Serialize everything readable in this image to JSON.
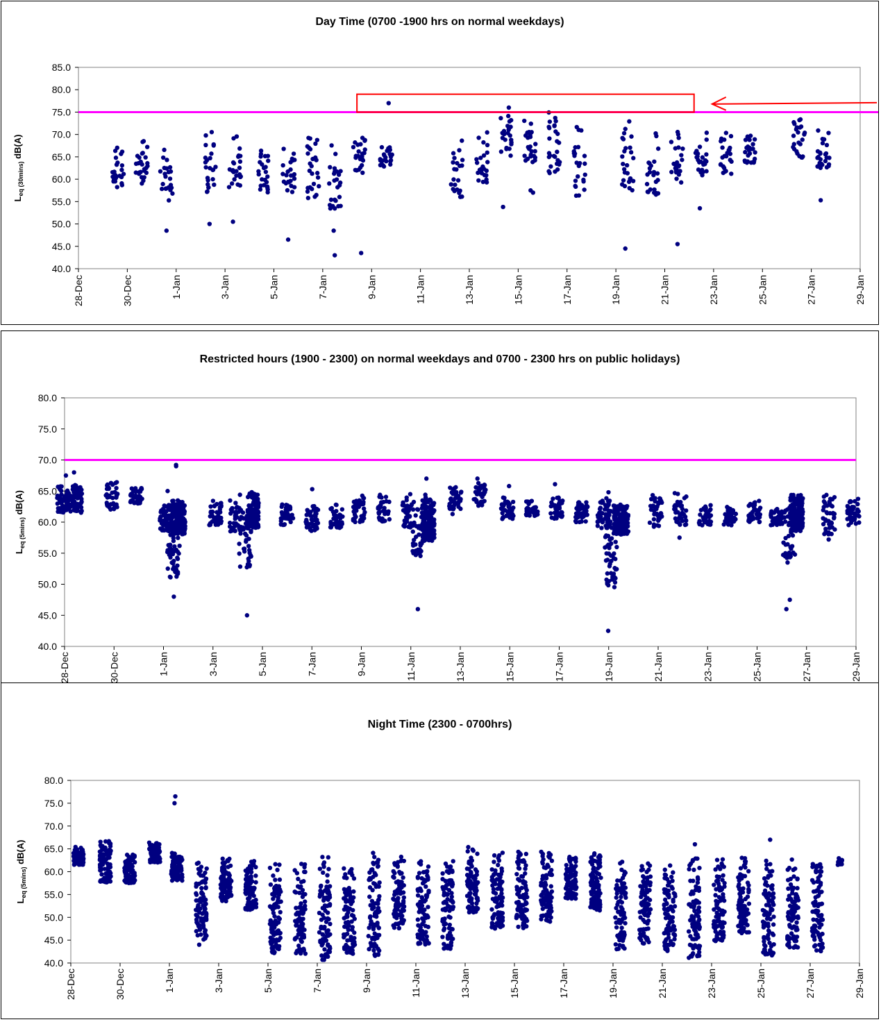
{
  "chart_data": [
    {
      "type": "scatter",
      "title": "Day Time (0700 -1900 hrs on normal weekdays)",
      "ylabel": {
        "main": "L",
        "sub": "eq (30mins)",
        "unit": " dB(A)"
      },
      "ylim": [
        40,
        85
      ],
      "yticks": [
        "40.0",
        "45.0",
        "50.0",
        "55.0",
        "60.0",
        "65.0",
        "70.0",
        "75.0",
        "80.0",
        "85.0"
      ],
      "xticks": [
        "28-Dec",
        "30-Dec",
        "1-Jan",
        "3-Jan",
        "5-Jan",
        "7-Jan",
        "9-Jan",
        "11-Jan",
        "13-Jan",
        "15-Jan",
        "17-Jan",
        "19-Jan",
        "21-Jan",
        "23-Jan",
        "25-Jan",
        "27-Jan",
        "29-Jan"
      ],
      "xlim_days": [
        0,
        32
      ],
      "limit_line": {
        "value": 75,
        "color": "#ff00ff"
      },
      "marker_color": "#000080",
      "annotation": {
        "type": "box-arrow",
        "color": "#ff0000",
        "x_start_day": 11.4,
        "x_end_day": 25.2,
        "y_low": 75,
        "y_high": 79
      },
      "clusters": [
        {
          "day": 1.6,
          "lo": 58,
          "hi": 69.5,
          "n": 26,
          "out": []
        },
        {
          "day": 2.6,
          "lo": 59,
          "hi": 69,
          "n": 26,
          "out": []
        },
        {
          "day": 3.6,
          "lo": 55,
          "hi": 67,
          "n": 22,
          "out": [
            48.5
          ]
        },
        {
          "day": 5.4,
          "lo": 57,
          "hi": 71,
          "n": 24,
          "out": [
            50
          ]
        },
        {
          "day": 6.4,
          "lo": 58,
          "hi": 70.5,
          "n": 24,
          "out": [
            50.5
          ]
        },
        {
          "day": 7.6,
          "lo": 57,
          "hi": 67.5,
          "n": 24,
          "out": []
        },
        {
          "day": 8.6,
          "lo": 57,
          "hi": 67,
          "n": 24,
          "out": [
            46.5
          ]
        },
        {
          "day": 9.6,
          "lo": 54,
          "hi": 70,
          "n": 26,
          "out": []
        },
        {
          "day": 10.5,
          "lo": 53,
          "hi": 70,
          "n": 24,
          "out": [
            48.5,
            43,
            54
          ]
        },
        {
          "day": 11.5,
          "lo": 61,
          "hi": 69.5,
          "n": 24,
          "out": [
            43.5
          ]
        },
        {
          "day": 12.6,
          "lo": 62.5,
          "hi": 68,
          "n": 24,
          "out": [
            77
          ]
        },
        {
          "day": 15.5,
          "lo": 56,
          "hi": 69.5,
          "n": 22,
          "out": []
        },
        {
          "day": 16.5,
          "lo": 59,
          "hi": 71,
          "n": 24,
          "out": []
        },
        {
          "day": 17.5,
          "lo": 65,
          "hi": 75.5,
          "n": 24,
          "out": [
            53.8,
            76
          ]
        },
        {
          "day": 18.5,
          "lo": 63,
          "hi": 73.5,
          "n": 24,
          "out": [
            57,
            57.5
          ]
        },
        {
          "day": 19.5,
          "lo": 60.5,
          "hi": 75,
          "n": 28,
          "out": []
        },
        {
          "day": 20.5,
          "lo": 55,
          "hi": 73,
          "n": 24,
          "out": []
        },
        {
          "day": 22.5,
          "lo": 57,
          "hi": 74,
          "n": 26,
          "out": [
            44.5
          ]
        },
        {
          "day": 23.5,
          "lo": 56.5,
          "hi": 72,
          "n": 24,
          "out": []
        },
        {
          "day": 24.5,
          "lo": 58.5,
          "hi": 71,
          "n": 24,
          "out": [
            45.5
          ]
        },
        {
          "day": 25.5,
          "lo": 60.5,
          "hi": 70.5,
          "n": 24,
          "out": [
            53.5
          ]
        },
        {
          "day": 26.5,
          "lo": 61,
          "hi": 70.5,
          "n": 24,
          "out": []
        },
        {
          "day": 27.5,
          "lo": 63.5,
          "hi": 71,
          "n": 24,
          "out": []
        },
        {
          "day": 29.5,
          "lo": 64.5,
          "hi": 74,
          "n": 24,
          "out": []
        },
        {
          "day": 30.5,
          "lo": 62,
          "hi": 72,
          "n": 26,
          "out": [
            55.3
          ]
        }
      ]
    },
    {
      "type": "scatter",
      "title": "Restricted hours (1900 - 2300) on normal weekdays and 0700 - 2300 hrs on public holidays)",
      "ylabel": {
        "main": "L",
        "sub": "eq (5mins)",
        "unit": " dB(A)"
      },
      "ylim": [
        40,
        80
      ],
      "yticks": [
        "40.0",
        "45.0",
        "50.0",
        "55.0",
        "60.0",
        "65.0",
        "70.0",
        "75.0",
        "80.0"
      ],
      "xticks": [
        "28-Dec",
        "30-Dec",
        "1-Jan",
        "3-Jan",
        "5-Jan",
        "7-Jan",
        "9-Jan",
        "11-Jan",
        "13-Jan",
        "15-Jan",
        "17-Jan",
        "19-Jan",
        "21-Jan",
        "23-Jan",
        "25-Jan",
        "27-Jan",
        "29-Jan"
      ],
      "xlim_days": [
        0,
        32
      ],
      "limit_line": {
        "value": 70,
        "color": "#ff00ff"
      },
      "marker_color": "#000080",
      "clusters": [
        {
          "day": 0.2,
          "lo": 61.5,
          "hi": 66,
          "n": 140,
          "w": 1.0,
          "out": [
            68,
            67.5
          ]
        },
        {
          "day": 1.9,
          "lo": 62,
          "hi": 66.5,
          "n": 40,
          "out": []
        },
        {
          "day": 2.9,
          "lo": 63,
          "hi": 65.5,
          "n": 40,
          "out": []
        },
        {
          "day": 4.1,
          "lo": 58.5,
          "hi": 63,
          "n": 60,
          "out": [
            65
          ]
        },
        {
          "day": 4.4,
          "lo": 51,
          "hi": 63,
          "n": 60,
          "out": [
            48,
            69
          ]
        },
        {
          "day": 4.6,
          "lo": 58,
          "hi": 63.5,
          "n": 180,
          "w": 0.55,
          "out": [
            69.2
          ]
        },
        {
          "day": 6.1,
          "lo": 59.5,
          "hi": 63.5,
          "n": 40,
          "out": []
        },
        {
          "day": 6.9,
          "lo": 58.5,
          "hi": 64.5,
          "n": 40,
          "out": []
        },
        {
          "day": 7.3,
          "lo": 52,
          "hi": 63,
          "n": 40,
          "out": [
            45
          ]
        },
        {
          "day": 7.6,
          "lo": 59,
          "hi": 65,
          "n": 140,
          "w": 0.5,
          "out": []
        },
        {
          "day": 9.0,
          "lo": 59.5,
          "hi": 63,
          "n": 40,
          "out": []
        },
        {
          "day": 10.0,
          "lo": 58.5,
          "hi": 63.5,
          "n": 40,
          "out": [
            65.3
          ]
        },
        {
          "day": 11.0,
          "lo": 59,
          "hi": 63,
          "n": 40,
          "out": []
        },
        {
          "day": 11.9,
          "lo": 60,
          "hi": 64.5,
          "n": 40,
          "out": []
        },
        {
          "day": 12.9,
          "lo": 60,
          "hi": 64.5,
          "n": 40,
          "out": []
        },
        {
          "day": 13.9,
          "lo": 59,
          "hi": 65,
          "n": 40,
          "out": []
        },
        {
          "day": 14.3,
          "lo": 54.5,
          "hi": 63,
          "n": 40,
          "out": [
            46
          ]
        },
        {
          "day": 14.7,
          "lo": 57,
          "hi": 64.5,
          "n": 150,
          "w": 0.5,
          "out": [
            67
          ]
        },
        {
          "day": 15.8,
          "lo": 62,
          "hi": 66,
          "n": 40,
          "out": [
            61.3
          ]
        },
        {
          "day": 16.8,
          "lo": 62.5,
          "hi": 66.5,
          "n": 40,
          "out": [
            67
          ]
        },
        {
          "day": 17.9,
          "lo": 60.5,
          "hi": 64,
          "n": 40,
          "out": [
            65.8
          ]
        },
        {
          "day": 18.9,
          "lo": 61,
          "hi": 63.5,
          "n": 40,
          "out": []
        },
        {
          "day": 19.9,
          "lo": 60.5,
          "hi": 64,
          "n": 40,
          "out": [
            66.1
          ]
        },
        {
          "day": 20.9,
          "lo": 60,
          "hi": 63.5,
          "n": 40,
          "out": []
        },
        {
          "day": 21.8,
          "lo": 59,
          "hi": 64,
          "n": 60,
          "out": []
        },
        {
          "day": 22.1,
          "lo": 49,
          "hi": 62,
          "n": 50,
          "out": [
            42.5,
            50.5,
            64.8
          ]
        },
        {
          "day": 22.5,
          "lo": 58,
          "hi": 63,
          "n": 150,
          "w": 0.6,
          "out": []
        },
        {
          "day": 23.9,
          "lo": 59,
          "hi": 64.5,
          "n": 40,
          "out": []
        },
        {
          "day": 24.9,
          "lo": 59.5,
          "hi": 65,
          "n": 40,
          "out": [
            57.5
          ]
        },
        {
          "day": 25.9,
          "lo": 59.5,
          "hi": 63,
          "n": 40,
          "out": []
        },
        {
          "day": 26.9,
          "lo": 59.5,
          "hi": 62.5,
          "n": 40,
          "out": []
        },
        {
          "day": 27.9,
          "lo": 60,
          "hi": 63.5,
          "n": 40,
          "out": []
        },
        {
          "day": 28.8,
          "lo": 59.5,
          "hi": 62.5,
          "n": 40,
          "out": []
        },
        {
          "day": 29.3,
          "lo": 54,
          "hi": 63,
          "n": 40,
          "out": [
            46,
            47.5,
            53.5
          ]
        },
        {
          "day": 29.6,
          "lo": 58.5,
          "hi": 64.5,
          "n": 150,
          "w": 0.5,
          "out": []
        },
        {
          "day": 30.9,
          "lo": 58,
          "hi": 64.5,
          "n": 40,
          "out": [
            57.2
          ]
        },
        {
          "day": 31.9,
          "lo": 59.5,
          "hi": 64,
          "n": 40,
          "out": []
        }
      ]
    },
    {
      "type": "scatter",
      "title": "Night Time (2300 - 0700hrs)",
      "ylabel": {
        "main": "L",
        "sub": "eq (5mins)",
        "unit": " dB(A)"
      },
      "ylim": [
        40,
        80
      ],
      "yticks": [
        "40.0",
        "45.0",
        "50.0",
        "55.0",
        "60.0",
        "65.0",
        "70.0",
        "75.0",
        "80.0"
      ],
      "xticks": [
        "28-Dec",
        "30-Dec",
        "1-Jan",
        "3-Jan",
        "5-Jan",
        "7-Jan",
        "9-Jan",
        "11-Jan",
        "13-Jan",
        "15-Jan",
        "17-Jan",
        "19-Jan",
        "21-Jan",
        "23-Jan",
        "25-Jan",
        "27-Jan",
        "29-Jan"
      ],
      "xlim_days": [
        0,
        32
      ],
      "marker_color": "#000080",
      "clusters": [
        {
          "day": 0.3,
          "lo": 61.5,
          "hi": 65.5,
          "n": 90,
          "w": 0.45,
          "out": []
        },
        {
          "day": 1.4,
          "lo": 57.5,
          "hi": 67,
          "n": 90,
          "w": 0.45,
          "out": []
        },
        {
          "day": 2.4,
          "lo": 57.5,
          "hi": 64,
          "n": 90,
          "w": 0.45,
          "out": []
        },
        {
          "day": 3.4,
          "lo": 62,
          "hi": 66.5,
          "n": 90,
          "w": 0.45,
          "out": []
        },
        {
          "day": 4.3,
          "lo": 58,
          "hi": 64.5,
          "n": 90,
          "w": 0.45,
          "out": [
            75,
            76.5
          ]
        },
        {
          "day": 5.3,
          "lo": 45,
          "hi": 62.5,
          "n": 90,
          "w": 0.45,
          "out": [
            44
          ]
        },
        {
          "day": 6.3,
          "lo": 53.5,
          "hi": 63.5,
          "n": 90,
          "w": 0.45,
          "out": []
        },
        {
          "day": 7.3,
          "lo": 51.5,
          "hi": 63,
          "n": 90,
          "w": 0.45,
          "out": []
        },
        {
          "day": 8.3,
          "lo": 42,
          "hi": 62,
          "n": 90,
          "w": 0.45,
          "out": []
        },
        {
          "day": 9.3,
          "lo": 42,
          "hi": 62.5,
          "n": 90,
          "w": 0.45,
          "out": []
        },
        {
          "day": 10.3,
          "lo": 40.5,
          "hi": 63.5,
          "n": 90,
          "w": 0.45,
          "out": []
        },
        {
          "day": 11.3,
          "lo": 42,
          "hi": 62.5,
          "n": 90,
          "w": 0.45,
          "out": []
        },
        {
          "day": 12.3,
          "lo": 41.5,
          "hi": 64.5,
          "n": 90,
          "w": 0.45,
          "out": []
        },
        {
          "day": 13.3,
          "lo": 47.5,
          "hi": 63.5,
          "n": 90,
          "w": 0.45,
          "out": []
        },
        {
          "day": 14.3,
          "lo": 44,
          "hi": 63,
          "n": 90,
          "w": 0.45,
          "out": []
        },
        {
          "day": 15.3,
          "lo": 43,
          "hi": 62.5,
          "n": 90,
          "w": 0.45,
          "out": []
        },
        {
          "day": 16.3,
          "lo": 51,
          "hi": 65.5,
          "n": 90,
          "w": 0.45,
          "out": []
        },
        {
          "day": 17.3,
          "lo": 47.5,
          "hi": 64.5,
          "n": 90,
          "w": 0.45,
          "out": []
        },
        {
          "day": 18.3,
          "lo": 47.5,
          "hi": 65,
          "n": 90,
          "w": 0.45,
          "out": []
        },
        {
          "day": 19.3,
          "lo": 49,
          "hi": 64.5,
          "n": 90,
          "w": 0.45,
          "out": []
        },
        {
          "day": 20.3,
          "lo": 54,
          "hi": 63.5,
          "n": 90,
          "w": 0.45,
          "out": []
        },
        {
          "day": 21.3,
          "lo": 51.5,
          "hi": 64.5,
          "n": 90,
          "w": 0.45,
          "out": []
        },
        {
          "day": 22.3,
          "lo": 43,
          "hi": 62.5,
          "n": 90,
          "w": 0.45,
          "out": []
        },
        {
          "day": 23.3,
          "lo": 44,
          "hi": 62.5,
          "n": 90,
          "w": 0.45,
          "out": []
        },
        {
          "day": 24.3,
          "lo": 42.5,
          "hi": 62,
          "n": 90,
          "w": 0.45,
          "out": []
        },
        {
          "day": 25.3,
          "lo": 41,
          "hi": 63,
          "n": 90,
          "w": 0.45,
          "out": [
            66
          ]
        },
        {
          "day": 26.3,
          "lo": 44.5,
          "hi": 63,
          "n": 90,
          "w": 0.45,
          "out": []
        },
        {
          "day": 27.3,
          "lo": 46,
          "hi": 63.5,
          "n": 90,
          "w": 0.45,
          "out": []
        },
        {
          "day": 28.3,
          "lo": 41.5,
          "hi": 62.5,
          "n": 90,
          "w": 0.45,
          "out": [
            67
          ]
        },
        {
          "day": 29.3,
          "lo": 43,
          "hi": 63,
          "n": 90,
          "w": 0.45,
          "out": []
        },
        {
          "day": 30.3,
          "lo": 42,
          "hi": 62.5,
          "n": 90,
          "w": 0.45,
          "out": []
        },
        {
          "day": 31.2,
          "lo": 61.5,
          "hi": 63,
          "n": 15,
          "w": 0.2,
          "out": []
        }
      ]
    }
  ]
}
